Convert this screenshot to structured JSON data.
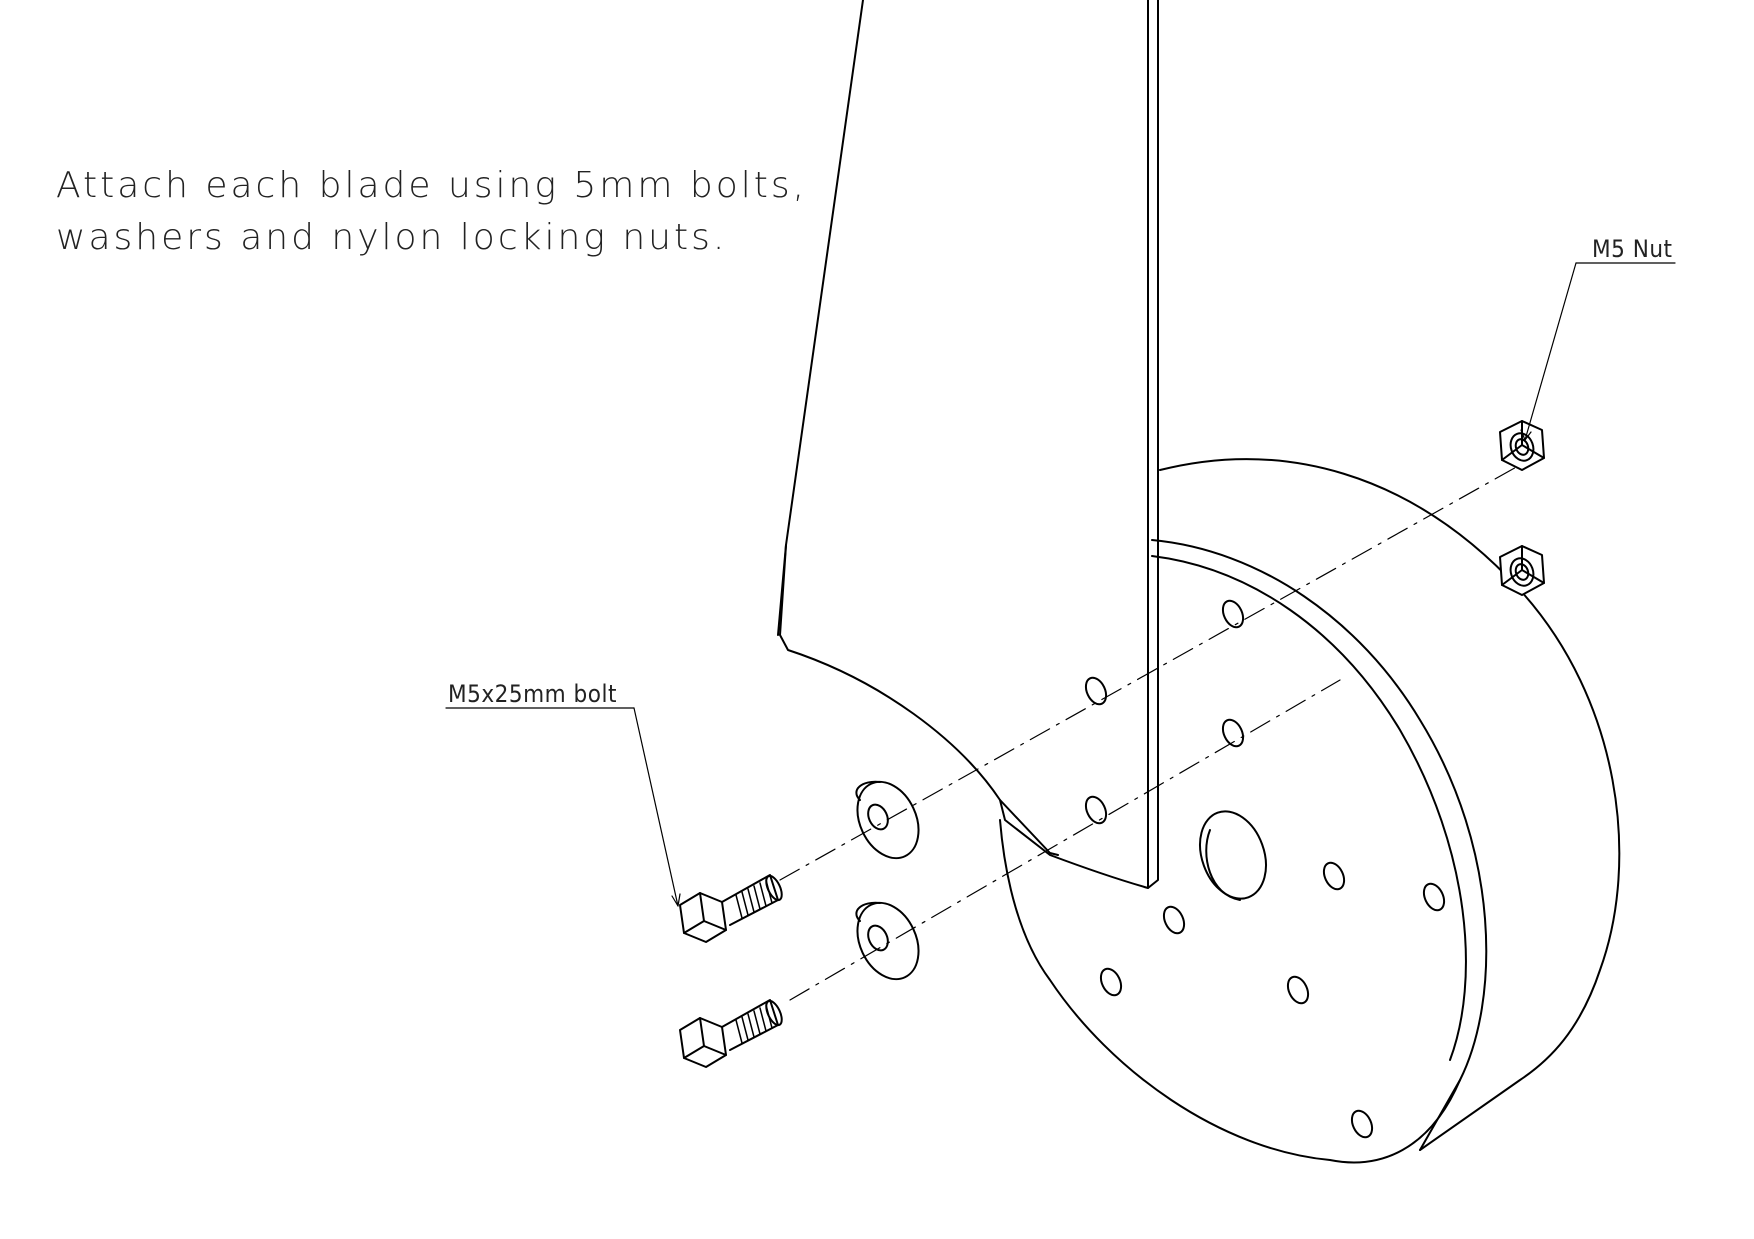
{
  "instruction": {
    "line1": "Attach each blade using 5mm bolts,",
    "line2": "washers and nylon locking nuts."
  },
  "callouts": {
    "bolt": "M5x25mm bolt",
    "nut": "M5 Nut"
  },
  "colors": {
    "line": "#000000",
    "text": "#222222",
    "background": "#ffffff"
  }
}
